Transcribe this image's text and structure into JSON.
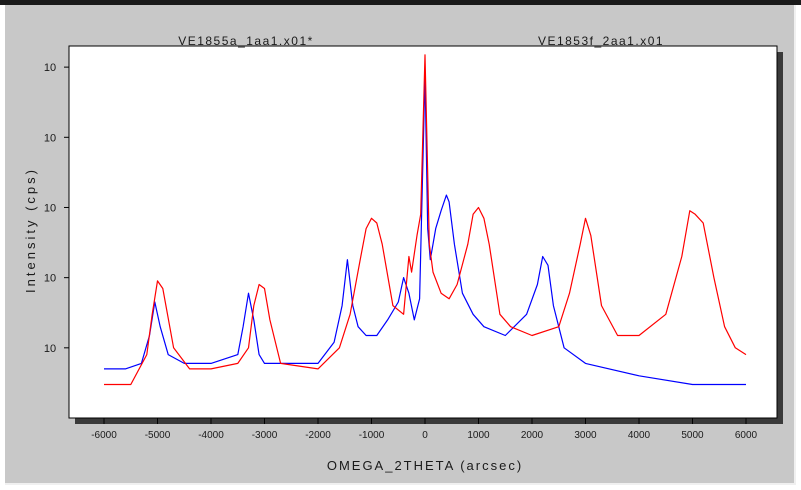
{
  "chart_data": {
    "type": "line",
    "file_labels": [
      "VE1855a_1aa1.x01*",
      "VE1853f_2aa1.x01"
    ],
    "xlabel": "OMEGA_2THETA (arcsec)",
    "ylabel": "Intensity (cps)",
    "xlim": [
      -6000,
      6000
    ],
    "x_ticks": [
      -6000,
      -5000,
      -4000,
      -3000,
      -2000,
      -1000,
      0,
      1000,
      2000,
      3000,
      4000,
      5000,
      6000
    ],
    "y_scale": "log",
    "ylim": [
      1,
      200000
    ],
    "y_ticks": [
      10,
      100,
      1000,
      10000,
      100000
    ],
    "y_tick_labels": [
      "10",
      "10",
      "10",
      "10",
      "10"
    ],
    "grid": false,
    "series": [
      {
        "color": "#0000ff",
        "x": [
          -6000,
          -5600,
          -5300,
          -5150,
          -5050,
          -4950,
          -4800,
          -4500,
          -4000,
          -3500,
          -3400,
          -3300,
          -3200,
          -3100,
          -3000,
          -2600,
          -2000,
          -1700,
          -1550,
          -1450,
          -1350,
          -1250,
          -1100,
          -900,
          -700,
          -500,
          -400,
          -300,
          -200,
          -100,
          0,
          50,
          100,
          200,
          300,
          400,
          450,
          550,
          700,
          900,
          1100,
          1500,
          1900,
          2100,
          2200,
          2300,
          2400,
          2600,
          3000,
          4000,
          5000,
          6000
        ],
        "y": [
          5,
          5,
          6,
          15,
          45,
          20,
          8,
          6,
          6,
          8,
          20,
          60,
          25,
          8,
          6,
          6,
          6,
          12,
          40,
          180,
          40,
          20,
          15,
          15,
          25,
          45,
          100,
          60,
          25,
          50,
          80000,
          500,
          180,
          500,
          900,
          1500,
          1200,
          300,
          60,
          30,
          20,
          15,
          30,
          80,
          200,
          150,
          40,
          10,
          6,
          4,
          3,
          3
        ]
      },
      {
        "color": "#ff0000",
        "x": [
          -6000,
          -5500,
          -5200,
          -5100,
          -5000,
          -4900,
          -4700,
          -4400,
          -4000,
          -3500,
          -3300,
          -3200,
          -3100,
          -3000,
          -2900,
          -2700,
          -2000,
          -1600,
          -1400,
          -1200,
          -1100,
          -1000,
          -900,
          -800,
          -600,
          -400,
          -300,
          -250,
          -150,
          -80,
          0,
          80,
          150,
          300,
          450,
          600,
          800,
          900,
          1000,
          1100,
          1200,
          1400,
          1600,
          2000,
          2500,
          2700,
          2900,
          3000,
          3100,
          3300,
          3600,
          4000,
          4500,
          4800,
          4950,
          5050,
          5200,
          5400,
          5600,
          5800,
          6000
        ],
        "y": [
          3,
          3,
          8,
          30,
          90,
          70,
          10,
          5,
          5,
          6,
          10,
          40,
          80,
          70,
          25,
          6,
          5,
          10,
          30,
          200,
          500,
          700,
          600,
          300,
          40,
          30,
          200,
          120,
          400,
          800,
          150000,
          300,
          120,
          60,
          50,
          80,
          300,
          800,
          1000,
          700,
          300,
          30,
          20,
          15,
          20,
          60,
          300,
          700,
          400,
          40,
          15,
          15,
          30,
          200,
          900,
          800,
          600,
          100,
          20,
          10,
          8
        ]
      }
    ]
  }
}
